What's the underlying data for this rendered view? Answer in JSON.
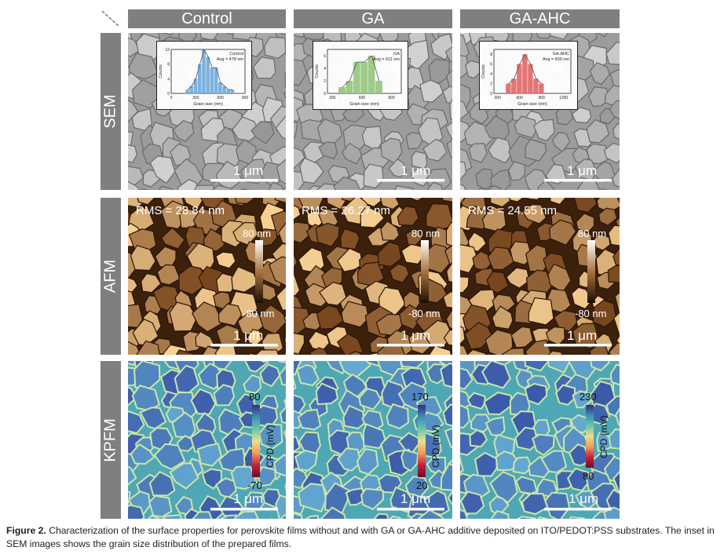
{
  "columns": [
    "Control",
    "GA",
    "GA-AHC"
  ],
  "rows": [
    "SEM",
    "AFM",
    "KPFM"
  ],
  "scale_bar": "1 μm",
  "afm": {
    "rms": [
      "RMS = 28.84 nm",
      "RMS = 26.27 nm",
      "RMS = 24.55 nm"
    ],
    "cbar_max": "80 nm",
    "cbar_min": "-80 nm"
  },
  "kpfm": {
    "unit": "CPD (mV)",
    "max": [
      "80",
      "170",
      "230"
    ],
    "min": [
      "-70",
      "20",
      "80"
    ]
  },
  "insets": [
    {
      "name": "Control",
      "avg": "Avg = 478 nm",
      "ylabel": "Counts",
      "xlabel": "Grain size (nm)",
      "xticks": [
        "0",
        "300",
        "600",
        "900"
      ],
      "yticks": [
        "0",
        "4",
        "8",
        "12"
      ],
      "color": "#6fa8dc",
      "chart_data": {
        "type": "bar",
        "x": [
          200,
          250,
          300,
          350,
          400,
          450,
          500,
          550,
          600,
          650,
          700,
          750
        ],
        "values": [
          1,
          2,
          4,
          8,
          12,
          10,
          7,
          7,
          3,
          2,
          1,
          1
        ],
        "xlim": [
          0,
          900
        ],
        "ylim": [
          0,
          12
        ]
      }
    },
    {
      "name": "GA",
      "avg": "Avg = 611 nm",
      "ylabel": "Counts",
      "xlabel": "Grain size (nm)",
      "xticks": [
        "300",
        "600",
        "900"
      ],
      "yticks": [
        "0",
        "2",
        "4",
        "6"
      ],
      "color": "#93c47d",
      "chart_data": {
        "type": "bar",
        "x": [
          400,
          475,
          550,
          625,
          700,
          775
        ],
        "values": [
          1,
          2,
          5,
          5,
          6,
          2
        ],
        "xlim": [
          250,
          1000
        ],
        "ylim": [
          0,
          7
        ]
      }
    },
    {
      "name": "GA-AHC",
      "avg": "Avg = 659 nm",
      "ylabel": "Counts",
      "xlabel": "Grain size (nm)",
      "xticks": [
        "300",
        "600",
        "900",
        "1200"
      ],
      "yticks": [
        "0",
        "2",
        "4",
        "6",
        "8"
      ],
      "color": "#e06666",
      "chart_data": {
        "type": "bar",
        "x": [
          450,
          525,
          600,
          675,
          750,
          825,
          900
        ],
        "values": [
          2,
          3,
          6,
          8,
          6,
          3,
          2
        ],
        "xlim": [
          250,
          1300
        ],
        "ylim": [
          0,
          9
        ]
      }
    }
  ],
  "caption": {
    "label": "Figure 2.",
    "text": "Characterization of the surface properties for perovskite films without and with GA or GA-AHC additive deposited on ITO/PEDOT:PSS substrates. The inset in SEM images shows the grain size distribution of the prepared films."
  },
  "colors": {
    "header": "#7f7f7f",
    "sem": "#a9a9a9",
    "afm": "#a86c34",
    "kpfm": "#5fa6b0"
  }
}
